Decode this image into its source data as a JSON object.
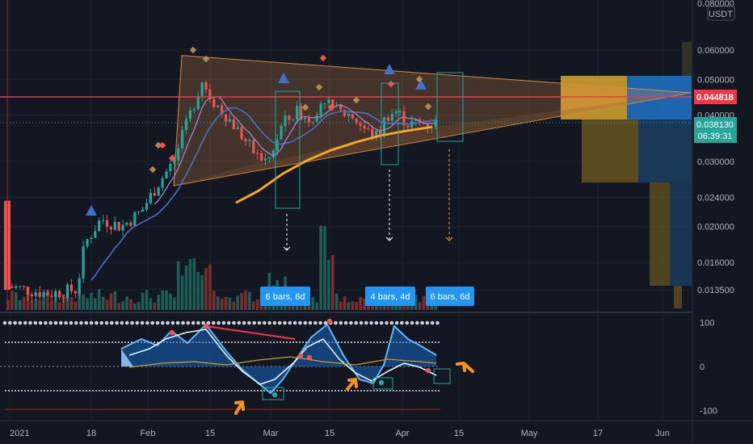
{
  "currency_label": "USDT",
  "colors": {
    "background": "#131722",
    "grid": "#1e222d",
    "up": "#26a69a",
    "down": "#ef5350",
    "ma_purple": "#9c7fc4",
    "ma_orange": "#f5a623",
    "ema_blue": "#4a70c9",
    "triangle_fill": "#f59b4c",
    "price_line_red": "#f23645",
    "tag_blue": "#2962ff",
    "osc_light_blue": "#64b5f6",
    "osc_dark_blue": "#1565c0",
    "current_price_teal": "#26a69a",
    "annotation_orange": "#f7931a"
  },
  "chart_data": {
    "type": "candlestick",
    "price_axis": {
      "ticks": [
        "0.060000",
        "0.050000",
        "0.040000",
        "0.030000",
        "0.024000",
        "0.020000",
        "0.016000",
        "0.013500"
      ],
      "top_partial": "0.080000",
      "log_scale": true
    },
    "time_axis": {
      "ticks": [
        "2021",
        "18",
        "Feb",
        "15",
        "Mar",
        "15",
        "Apr",
        "15",
        "May",
        "17",
        "Jun"
      ]
    },
    "last_price": "0.038130",
    "countdown": "06:39:31",
    "horizontal_level": "0.044818",
    "bars_tags": [
      "6 bars, 6d",
      "4 bars, 4d",
      "6 bars, 6d"
    ],
    "oscillator": {
      "ticks": [
        "100",
        "0",
        "-100"
      ],
      "range": [
        -110,
        110
      ]
    }
  }
}
